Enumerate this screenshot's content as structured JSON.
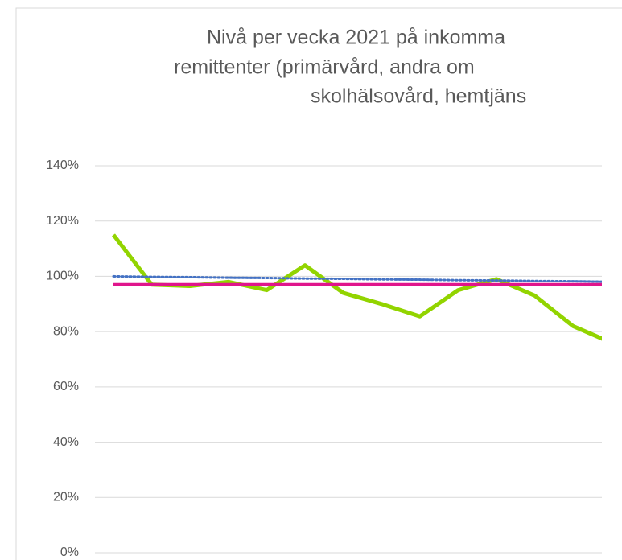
{
  "chart_data": {
    "type": "line",
    "title_lines": [
      "Nivå per vecka 2021 på inkomma",
      "remittenter (primärvård, andra om",
      "skolhälsovård, hemtjäns"
    ],
    "categories": [
      null,
      null,
      null,
      null,
      null,
      null,
      null,
      null,
      null,
      null,
      null,
      null,
      null,
      null
    ],
    "series": [
      {
        "color": "#92d400",
        "width": 5,
        "dash": "none",
        "values": [
          115,
          97,
          96.5,
          98,
          95,
          104,
          94,
          90,
          85.5,
          95,
          99,
          93,
          82,
          76
        ]
      },
      {
        "color": "#4472c4",
        "width": 3,
        "dash": "2 3",
        "values": [
          100,
          99.8,
          99.7,
          99.5,
          99.4,
          99.2,
          99.1,
          98.9,
          98.8,
          98.6,
          98.5,
          98.3,
          98.2,
          98
        ]
      },
      {
        "color": "#e0158c",
        "width": 4,
        "dash": "none",
        "values": [
          97,
          97,
          97,
          97,
          97,
          97,
          97,
          97,
          97,
          97,
          97,
          97,
          97,
          97
        ]
      }
    ],
    "ylim": [
      0,
      140
    ],
    "yticks": [
      {
        "value": 0,
        "label": "0%"
      },
      {
        "value": 20,
        "label": "20%"
      },
      {
        "value": 40,
        "label": "40%"
      },
      {
        "value": 60,
        "label": "60%"
      },
      {
        "value": 80,
        "label": "80%"
      },
      {
        "value": 100,
        "label": "100%"
      },
      {
        "value": 120,
        "label": "120%"
      },
      {
        "value": 140,
        "label": "140%"
      }
    ],
    "grid": true
  }
}
